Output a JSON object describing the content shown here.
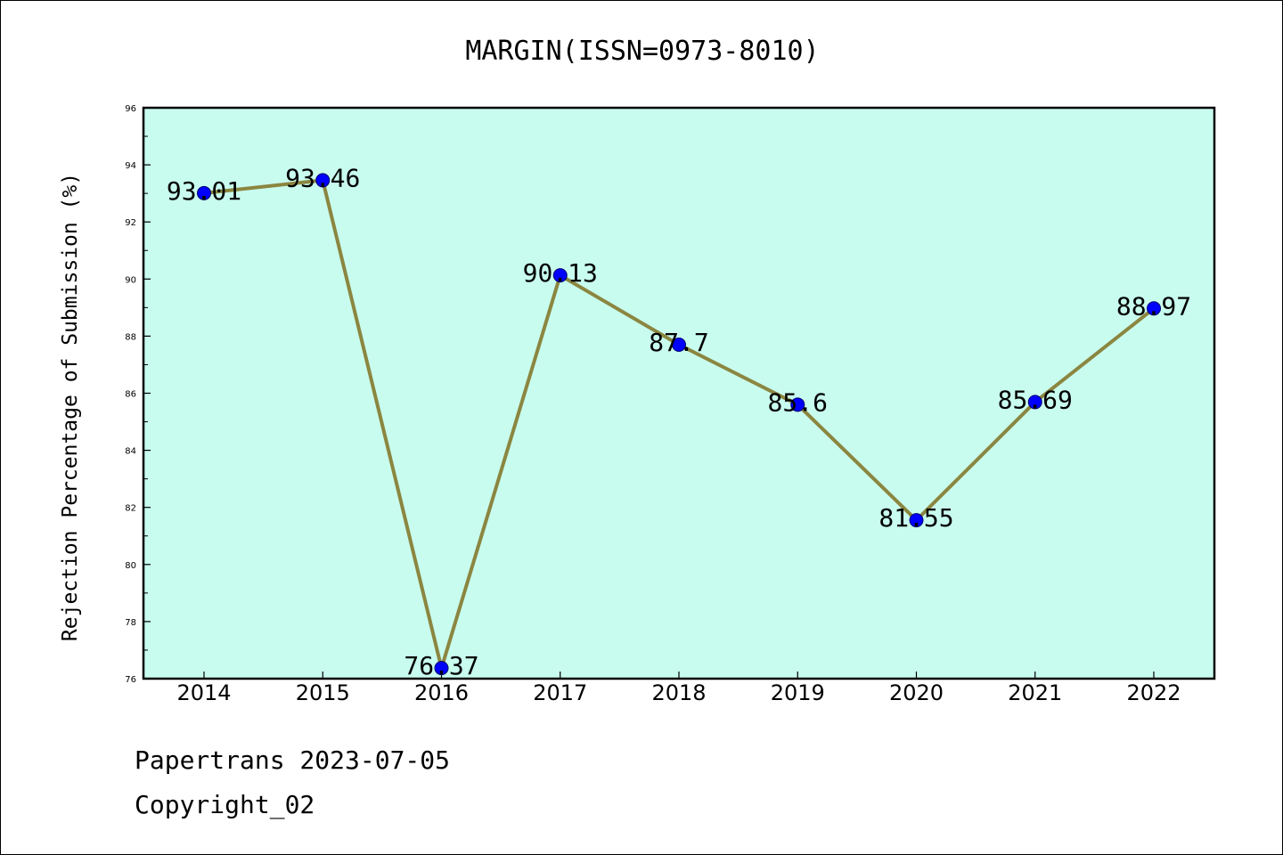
{
  "chart_data": {
    "type": "line",
    "title": "MARGIN(ISSN=0973-8010)",
    "xlabel": "",
    "ylabel": "Rejection Percentage of Submission (%)",
    "categories": [
      "2014",
      "2015",
      "2016",
      "2017",
      "2018",
      "2019",
      "2020",
      "2021",
      "2022"
    ],
    "values": [
      93.01,
      93.46,
      76.37,
      90.13,
      87.7,
      85.6,
      81.55,
      85.69,
      88.97
    ],
    "data_labels": [
      "93.01",
      "93.46",
      "76.37",
      "90.13",
      "87.7",
      "85.6",
      "81.55",
      "85.69",
      "88.97"
    ],
    "ylim": [
      76,
      96
    ],
    "yticks": [
      "76",
      "78",
      "80",
      "82",
      "84",
      "86",
      "88",
      "90",
      "92",
      "94",
      "96"
    ],
    "grid": false,
    "colors": {
      "plot_background": "#c8fcee",
      "line": "#8b8640",
      "marker": "#0000ff"
    }
  },
  "footer": {
    "line1": "Papertrans 2023-07-05",
    "line2": "Copyright_02"
  }
}
